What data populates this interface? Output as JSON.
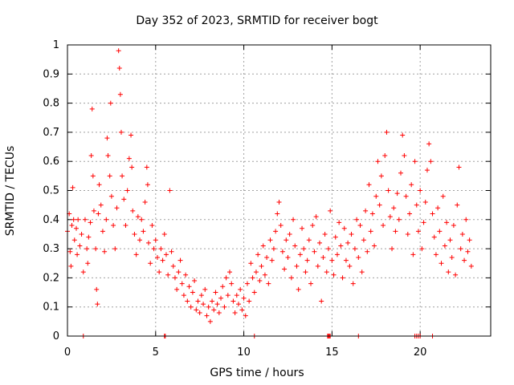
{
  "chart_data": {
    "type": "scatter",
    "title": "Day 352 of 2023, SRMTID for receiver bogt",
    "xlabel": "GPS time / hours",
    "ylabel": "SRMTID / TECUs",
    "xlim": [
      0,
      24
    ],
    "ylim": [
      0,
      1
    ],
    "xticks": [
      0,
      5,
      10,
      15,
      20
    ],
    "xtick_labels": [
      "0",
      "5",
      "10",
      "15",
      "20"
    ],
    "yticks": [
      0,
      0.1,
      0.2,
      0.3,
      0.4,
      0.5,
      0.6,
      0.7,
      0.8,
      0.9,
      1
    ],
    "ytick_labels": [
      "0",
      "0.1",
      "0.2",
      "0.3",
      "0.4",
      "0.5",
      "0.6",
      "0.7",
      "0.8",
      "0.9",
      "1"
    ],
    "grid": true,
    "marker": "+",
    "series": [
      {
        "name": "SRMTID",
        "color": "#ff0000",
        "points": [
          [
            0.0,
            0.36
          ],
          [
            0.1,
            0.42
          ],
          [
            0.15,
            0.29
          ],
          [
            0.2,
            0.24
          ],
          [
            0.25,
            0.38
          ],
          [
            0.3,
            0.51
          ],
          [
            0.35,
            0.4
          ],
          [
            0.4,
            0.33
          ],
          [
            0.5,
            0.37
          ],
          [
            0.55,
            0.28
          ],
          [
            0.6,
            0.4
          ],
          [
            0.7,
            0.31
          ],
          [
            0.8,
            0.35
          ],
          [
            0.9,
            0.22
          ],
          [
            1.0,
            0.4
          ],
          [
            1.1,
            0.3
          ],
          [
            1.15,
            0.25
          ],
          [
            1.2,
            0.34
          ],
          [
            1.3,
            0.39
          ],
          [
            1.35,
            0.62
          ],
          [
            1.4,
            0.78
          ],
          [
            1.45,
            0.55
          ],
          [
            1.5,
            0.43
          ],
          [
            1.6,
            0.3
          ],
          [
            1.65,
            0.16
          ],
          [
            1.7,
            0.11
          ],
          [
            1.75,
            0.42
          ],
          [
            1.8,
            0.52
          ],
          [
            1.9,
            0.45
          ],
          [
            2.0,
            0.36
          ],
          [
            2.1,
            0.29
          ],
          [
            2.2,
            0.4
          ],
          [
            2.25,
            0.68
          ],
          [
            2.3,
            0.62
          ],
          [
            2.4,
            0.55
          ],
          [
            2.45,
            0.8
          ],
          [
            2.5,
            0.48
          ],
          [
            2.6,
            0.38
          ],
          [
            2.7,
            0.3
          ],
          [
            2.8,
            0.44
          ],
          [
            2.9,
            0.98
          ],
          [
            2.95,
            0.92
          ],
          [
            3.0,
            0.83
          ],
          [
            3.05,
            0.7
          ],
          [
            3.1,
            0.55
          ],
          [
            3.2,
            0.47
          ],
          [
            3.3,
            0.38
          ],
          [
            3.4,
            0.5
          ],
          [
            3.5,
            0.61
          ],
          [
            3.6,
            0.69
          ],
          [
            3.65,
            0.58
          ],
          [
            3.7,
            0.43
          ],
          [
            3.8,
            0.35
          ],
          [
            3.9,
            0.28
          ],
          [
            4.0,
            0.41
          ],
          [
            4.1,
            0.33
          ],
          [
            4.2,
            0.4
          ],
          [
            4.3,
            0.36
          ],
          [
            4.4,
            0.46
          ],
          [
            4.5,
            0.58
          ],
          [
            4.55,
            0.52
          ],
          [
            4.6,
            0.32
          ],
          [
            4.7,
            0.25
          ],
          [
            4.8,
            0.38
          ],
          [
            4.9,
            0.3
          ],
          [
            5.0,
            0.33
          ],
          [
            5.1,
            0.27
          ],
          [
            5.2,
            0.22
          ],
          [
            5.3,
            0.3
          ],
          [
            5.4,
            0.26
          ],
          [
            5.5,
            0.35
          ],
          [
            5.6,
            0.28
          ],
          [
            5.7,
            0.21
          ],
          [
            5.8,
            0.5
          ],
          [
            5.9,
            0.29
          ],
          [
            6.0,
            0.24
          ],
          [
            6.1,
            0.2
          ],
          [
            6.2,
            0.16
          ],
          [
            6.3,
            0.22
          ],
          [
            6.4,
            0.26
          ],
          [
            6.5,
            0.18
          ],
          [
            6.6,
            0.14
          ],
          [
            6.7,
            0.21
          ],
          [
            6.8,
            0.12
          ],
          [
            6.9,
            0.17
          ],
          [
            7.0,
            0.1
          ],
          [
            7.1,
            0.15
          ],
          [
            7.2,
            0.19
          ],
          [
            7.3,
            0.09
          ],
          [
            7.4,
            0.12
          ],
          [
            7.5,
            0.08
          ],
          [
            7.6,
            0.14
          ],
          [
            7.7,
            0.11
          ],
          [
            7.8,
            0.16
          ],
          [
            7.9,
            0.07
          ],
          [
            8.0,
            0.1
          ],
          [
            8.1,
            0.05
          ],
          [
            8.2,
            0.12
          ],
          [
            8.3,
            0.09
          ],
          [
            8.4,
            0.15
          ],
          [
            8.5,
            0.11
          ],
          [
            8.6,
            0.08
          ],
          [
            8.7,
            0.13
          ],
          [
            8.8,
            0.17
          ],
          [
            8.9,
            0.1
          ],
          [
            9.0,
            0.2
          ],
          [
            9.1,
            0.14
          ],
          [
            9.2,
            0.22
          ],
          [
            9.3,
            0.18
          ],
          [
            9.4,
            0.12
          ],
          [
            9.5,
            0.08
          ],
          [
            9.6,
            0.14
          ],
          [
            9.7,
            0.11
          ],
          [
            9.8,
            0.16
          ],
          [
            9.9,
            0.09
          ],
          [
            10.0,
            0.13
          ],
          [
            10.1,
            0.07
          ],
          [
            10.2,
            0.18
          ],
          [
            10.3,
            0.12
          ],
          [
            10.4,
            0.25
          ],
          [
            10.5,
            0.2
          ],
          [
            10.6,
            0.15
          ],
          [
            10.7,
            0.22
          ],
          [
            10.8,
            0.28
          ],
          [
            10.9,
            0.19
          ],
          [
            11.0,
            0.24
          ],
          [
            11.1,
            0.31
          ],
          [
            11.2,
            0.21
          ],
          [
            11.3,
            0.27
          ],
          [
            11.4,
            0.18
          ],
          [
            11.5,
            0.33
          ],
          [
            11.6,
            0.26
          ],
          [
            11.7,
            0.3
          ],
          [
            11.8,
            0.36
          ],
          [
            11.9,
            0.42
          ],
          [
            12.0,
            0.46
          ],
          [
            12.1,
            0.38
          ],
          [
            12.2,
            0.29
          ],
          [
            12.3,
            0.23
          ],
          [
            12.4,
            0.33
          ],
          [
            12.5,
            0.27
          ],
          [
            12.6,
            0.35
          ],
          [
            12.7,
            0.2
          ],
          [
            12.8,
            0.4
          ],
          [
            12.9,
            0.31
          ],
          [
            13.0,
            0.24
          ],
          [
            13.1,
            0.16
          ],
          [
            13.2,
            0.28
          ],
          [
            13.3,
            0.37
          ],
          [
            13.4,
            0.3
          ],
          [
            13.5,
            0.22
          ],
          [
            13.6,
            0.26
          ],
          [
            13.7,
            0.33
          ],
          [
            13.8,
            0.18
          ],
          [
            13.9,
            0.38
          ],
          [
            14.0,
            0.29
          ],
          [
            14.1,
            0.41
          ],
          [
            14.2,
            0.24
          ],
          [
            14.3,
            0.32
          ],
          [
            14.4,
            0.12
          ],
          [
            14.5,
            0.27
          ],
          [
            14.6,
            0.35
          ],
          [
            14.7,
            0.22
          ],
          [
            14.8,
            0.3
          ],
          [
            14.9,
            0.43
          ],
          [
            15.0,
            0.26
          ],
          [
            15.1,
            0.21
          ],
          [
            15.2,
            0.34
          ],
          [
            15.3,
            0.28
          ],
          [
            15.4,
            0.39
          ],
          [
            15.5,
            0.31
          ],
          [
            15.6,
            0.2
          ],
          [
            15.7,
            0.37
          ],
          [
            15.8,
            0.26
          ],
          [
            15.9,
            0.32
          ],
          [
            16.0,
            0.24
          ],
          [
            16.1,
            0.35
          ],
          [
            16.2,
            0.18
          ],
          [
            16.3,
            0.3
          ],
          [
            16.4,
            0.4
          ],
          [
            16.5,
            0.27
          ],
          [
            16.6,
            0.38
          ],
          [
            16.7,
            0.22
          ],
          [
            16.8,
            0.33
          ],
          [
            16.9,
            0.43
          ],
          [
            17.0,
            0.29
          ],
          [
            17.1,
            0.52
          ],
          [
            17.2,
            0.36
          ],
          [
            17.3,
            0.42
          ],
          [
            17.4,
            0.31
          ],
          [
            17.5,
            0.48
          ],
          [
            17.6,
            0.6
          ],
          [
            17.7,
            0.45
          ],
          [
            17.8,
            0.55
          ],
          [
            17.9,
            0.38
          ],
          [
            18.0,
            0.62
          ],
          [
            18.1,
            0.7
          ],
          [
            18.2,
            0.5
          ],
          [
            18.3,
            0.41
          ],
          [
            18.4,
            0.3
          ],
          [
            18.5,
            0.44
          ],
          [
            18.6,
            0.36
          ],
          [
            18.7,
            0.49
          ],
          [
            18.8,
            0.4
          ],
          [
            18.9,
            0.56
          ],
          [
            19.0,
            0.69
          ],
          [
            19.1,
            0.62
          ],
          [
            19.2,
            0.48
          ],
          [
            19.3,
            0.35
          ],
          [
            19.4,
            0.42
          ],
          [
            19.5,
            0.52
          ],
          [
            19.6,
            0.28
          ],
          [
            19.7,
            0.6
          ],
          [
            19.8,
            0.45
          ],
          [
            19.9,
            0.36
          ],
          [
            20.0,
            0.5
          ],
          [
            20.1,
            0.3
          ],
          [
            20.2,
            0.39
          ],
          [
            20.3,
            0.46
          ],
          [
            20.4,
            0.57
          ],
          [
            20.5,
            0.66
          ],
          [
            20.6,
            0.6
          ],
          [
            20.7,
            0.42
          ],
          [
            20.8,
            0.34
          ],
          [
            20.9,
            0.28
          ],
          [
            21.0,
            0.44
          ],
          [
            21.1,
            0.36
          ],
          [
            21.2,
            0.25
          ],
          [
            21.3,
            0.48
          ],
          [
            21.4,
            0.31
          ],
          [
            21.5,
            0.39
          ],
          [
            21.6,
            0.22
          ],
          [
            21.7,
            0.33
          ],
          [
            21.8,
            0.27
          ],
          [
            21.9,
            0.38
          ],
          [
            22.0,
            0.21
          ],
          [
            22.1,
            0.45
          ],
          [
            22.2,
            0.58
          ],
          [
            22.3,
            0.3
          ],
          [
            22.4,
            0.35
          ],
          [
            22.5,
            0.26
          ],
          [
            22.6,
            0.4
          ],
          [
            22.7,
            0.29
          ],
          [
            22.8,
            0.33
          ],
          [
            22.9,
            0.24
          ]
        ]
      }
    ],
    "zero_points": [
      0.9,
      5.5,
      5.55,
      10.6,
      14.75,
      14.8,
      14.85,
      14.9,
      16.5,
      19.7,
      19.8,
      19.9,
      20.0,
      20.7
    ]
  }
}
